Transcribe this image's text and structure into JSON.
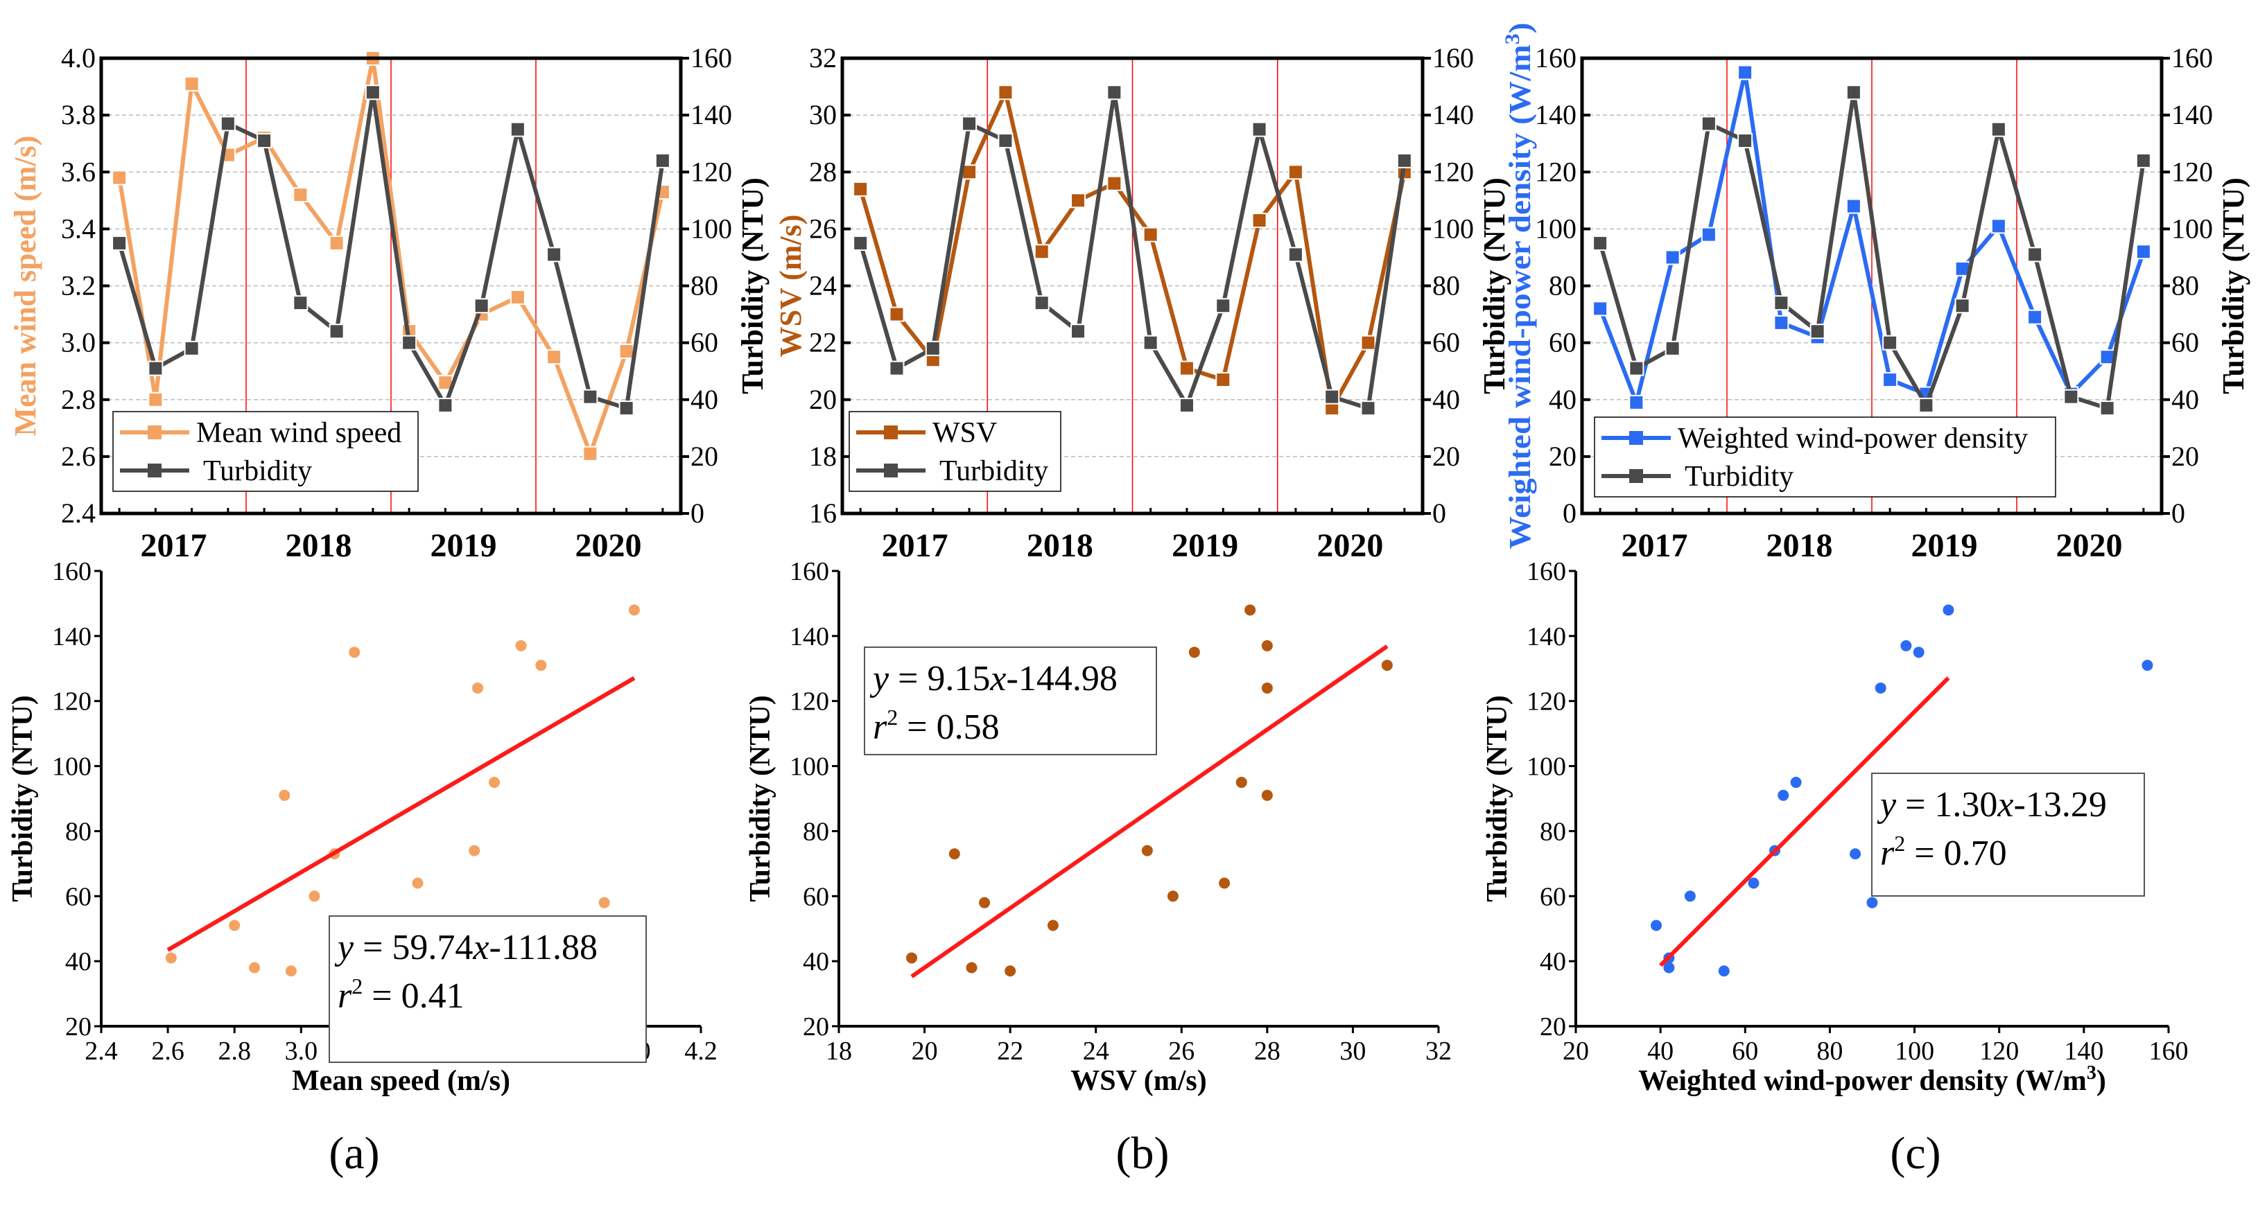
{
  "colors": {
    "orange": "#F4A261",
    "brown": "#B5570F",
    "blue": "#2B6BF3",
    "gray": "#4A4A4A",
    "fit": "#FF1A1A",
    "divider": "#FF0000"
  },
  "panel_labels": [
    "(a)",
    "(b)",
    "(c)"
  ],
  "chart_data": [
    {
      "type": "line",
      "panel": "a-top",
      "x_tick_labels": [
        "2017",
        "2018",
        "2019",
        "2020"
      ],
      "left_axis": {
        "label": "Mean wind speed (m/s)",
        "ylim": [
          2.4,
          4.0
        ],
        "step": 0.2,
        "decimals": 1,
        "color_key": "orange"
      },
      "right_axis": {
        "label": "Turbidity (NTU)",
        "ylim": [
          0,
          160
        ],
        "step": 20
      },
      "series": [
        {
          "name": "Mean wind speed",
          "axis": "left",
          "color_key": "orange",
          "values": [
            3.58,
            2.8,
            3.91,
            3.66,
            3.72,
            3.52,
            3.35,
            4.0,
            3.04,
            2.86,
            3.1,
            3.16,
            2.95,
            2.61,
            2.97,
            3.53
          ]
        },
        {
          "name": "Turbidity",
          "axis": "right",
          "color_key": "gray",
          "values": [
            95,
            51,
            58,
            137,
            131,
            74,
            64,
            148,
            60,
            38,
            73,
            135,
            91,
            41,
            37,
            124
          ]
        }
      ],
      "legend": "bottom-left"
    },
    {
      "type": "line",
      "panel": "b-top",
      "x_tick_labels": [
        "2017",
        "2018",
        "2019",
        "2020"
      ],
      "left_axis": {
        "label": "WSV (m/s)",
        "ylim": [
          16,
          32
        ],
        "step": 2,
        "decimals": 0,
        "color_key": "brown"
      },
      "right_axis": {
        "label": "Turbidity (NTU)",
        "ylim": [
          0,
          160
        ],
        "step": 20
      },
      "series": [
        {
          "name": "WSV",
          "axis": "left",
          "color_key": "brown",
          "values": [
            27.4,
            23.0,
            21.4,
            28.0,
            30.8,
            25.2,
            27.0,
            27.6,
            25.8,
            21.1,
            20.7,
            26.3,
            28.0,
            19.7,
            22.0,
            28.0
          ]
        },
        {
          "name": "Turbidity",
          "axis": "right",
          "color_key": "gray",
          "values": [
            95,
            51,
            58,
            137,
            131,
            74,
            64,
            148,
            60,
            38,
            73,
            135,
            91,
            41,
            37,
            124
          ]
        }
      ],
      "legend": "bottom-left"
    },
    {
      "type": "line",
      "panel": "c-top",
      "x_tick_labels": [
        "2017",
        "2018",
        "2019",
        "2020"
      ],
      "left_axis": {
        "label": "Weighted wind-power density (W/m",
        "label_sup": "3",
        "label_end": ")",
        "ylim": [
          0,
          160
        ],
        "step": 20,
        "decimals": 0,
        "color_key": "blue"
      },
      "right_axis": {
        "label": "Turbidity (NTU)",
        "ylim": [
          0,
          160
        ],
        "step": 20
      },
      "series": [
        {
          "name": "Weighted wind-power density",
          "axis": "left",
          "color_key": "blue",
          "values": [
            72,
            39,
            90,
            98,
            155,
            67,
            62,
            108,
            47,
            42,
            86,
            101,
            69,
            42,
            55,
            92
          ]
        },
        {
          "name": "Turbidity",
          "axis": "right",
          "color_key": "gray",
          "values": [
            95,
            51,
            58,
            137,
            131,
            74,
            64,
            148,
            60,
            38,
            73,
            135,
            91,
            41,
            37,
            124
          ]
        }
      ],
      "legend": "bottom-left"
    },
    {
      "type": "scatter",
      "panel": "a-bottom",
      "xlabel": "Mean speed (m/s)",
      "ylabel": "Turbidity (NTU)",
      "xlim": [
        2.4,
        4.2
      ],
      "xstep": 0.2,
      "xdecimals": 1,
      "ylim": [
        20,
        160
      ],
      "ystep": 20,
      "color_key": "orange",
      "x": [
        3.58,
        2.8,
        3.91,
        3.66,
        3.72,
        3.52,
        3.35,
        4.0,
        3.04,
        2.86,
        3.1,
        3.16,
        2.95,
        2.61,
        2.97,
        3.53
      ],
      "y": [
        95,
        51,
        58,
        137,
        131,
        74,
        64,
        148,
        60,
        38,
        73,
        135,
        91,
        41,
        37,
        124
      ],
      "fit": {
        "slope": 59.74,
        "intercept": -111.88,
        "x_range": [
          2.6,
          4.0
        ],
        "slope_label": "59.74",
        "intercept_label": "-111.88",
        "r2": "0.41"
      },
      "annotation": "bottom-center"
    },
    {
      "type": "scatter",
      "panel": "b-bottom",
      "xlabel": "WSV  (m/s)",
      "ylabel": "Turbidity (NTU)",
      "xlim": [
        18,
        32
      ],
      "xstep": 2,
      "xdecimals": 0,
      "ylim": [
        20,
        160
      ],
      "ystep": 20,
      "color_key": "brown",
      "x": [
        27.4,
        23.0,
        21.4,
        28.0,
        30.8,
        25.2,
        27.0,
        27.6,
        25.8,
        21.1,
        20.7,
        26.3,
        28.0,
        19.7,
        22.0,
        28.0
      ],
      "y": [
        95,
        51,
        58,
        137,
        131,
        74,
        64,
        148,
        60,
        38,
        73,
        135,
        91,
        41,
        37,
        124
      ],
      "fit": {
        "slope": 9.15,
        "intercept": -144.98,
        "x_range": [
          19.7,
          30.8
        ],
        "slope_label": "9.15",
        "intercept_label": "-144.98",
        "r2": "0.58"
      },
      "annotation": "top-left"
    },
    {
      "type": "scatter",
      "panel": "c-bottom",
      "xlabel": "Weighted wind-power density (W/m",
      "xlabel_sup": "3",
      "xlabel_end": ")",
      "ylabel": "Turbidity (NTU)",
      "xlim": [
        20,
        160
      ],
      "xstep": 20,
      "xdecimals": 0,
      "ylim": [
        20,
        160
      ],
      "ystep": 20,
      "color_key": "blue",
      "x": [
        72,
        39,
        90,
        98,
        155,
        67,
        62,
        108,
        47,
        42,
        86,
        101,
        69,
        42,
        55,
        92
      ],
      "y": [
        95,
        51,
        58,
        137,
        131,
        74,
        64,
        148,
        60,
        38,
        73,
        135,
        91,
        41,
        37,
        124
      ],
      "fit": {
        "slope": 1.3,
        "intercept": -13.29,
        "x_range": [
          40,
          108
        ],
        "slope_label": "1.30",
        "intercept_label": "-13.29",
        "r2": "0.70"
      },
      "annotation": "center-right"
    }
  ]
}
